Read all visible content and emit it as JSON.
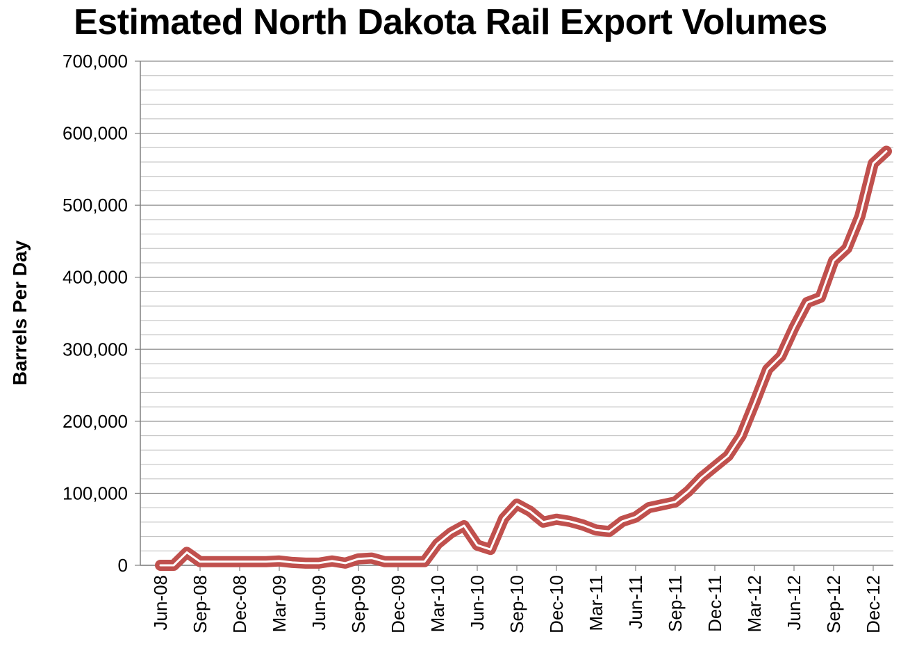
{
  "chart_data": {
    "type": "line",
    "title": "Estimated North Dakota Rail Export Volumes",
    "xlabel": "",
    "ylabel": "Barrels Per Day",
    "ylim": [
      0,
      700000
    ],
    "yticks": [
      "0",
      "100,000",
      "200,000",
      "300,000",
      "400,000",
      "500,000",
      "600,000",
      "700,000"
    ],
    "ytick_values": [
      0,
      100000,
      200000,
      300000,
      400000,
      500000,
      600000,
      700000
    ],
    "xticks": [
      "Jun-08",
      "Sep-08",
      "Dec-08",
      "Mar-09",
      "Jun-09",
      "Sep-09",
      "Dec-09",
      "Mar-10",
      "Jun-10",
      "Sep-10",
      "Dec-10",
      "Mar-11",
      "Jun-11",
      "Sep-11",
      "Dec-11",
      "Mar-12",
      "Jun-12",
      "Sep-12",
      "Dec-12"
    ],
    "grid": {
      "major": true,
      "minor": true,
      "minor_step": 20000
    },
    "legend": "none",
    "line_color": "#C0504D",
    "series": [
      {
        "x": [
          "Jun-08",
          "Jul-08",
          "Aug-08",
          "Sep-08",
          "Oct-08",
          "Nov-08",
          "Dec-08",
          "Jan-09",
          "Feb-09",
          "Mar-09",
          "Apr-09",
          "May-09",
          "Jun-09",
          "Jul-09",
          "Aug-09",
          "Sep-09",
          "Oct-09",
          "Nov-09",
          "Dec-09",
          "Jan-10",
          "Feb-10",
          "Mar-10",
          "Apr-10",
          "May-10",
          "Jun-10",
          "Jul-10",
          "Aug-10",
          "Sep-10",
          "Oct-10",
          "Nov-10",
          "Dec-10",
          "Jan-11",
          "Feb-11",
          "Mar-11",
          "Apr-11",
          "May-11",
          "Jun-11",
          "Jul-11",
          "Aug-11",
          "Sep-11",
          "Oct-11",
          "Nov-11",
          "Dec-11",
          "Jan-12",
          "Feb-12",
          "Mar-12",
          "Apr-12",
          "May-12",
          "Jun-12",
          "Jul-12",
          "Aug-12",
          "Sep-12",
          "Oct-12",
          "Nov-12",
          "Dec-12",
          "Jan-13"
        ],
        "values": [
          0,
          0,
          18000,
          5000,
          5000,
          5000,
          5000,
          5000,
          5000,
          6000,
          4000,
          3000,
          3000,
          6000,
          3000,
          9000,
          10000,
          5000,
          5000,
          5000,
          5000,
          30000,
          45000,
          55000,
          28000,
          22000,
          65000,
          85000,
          75000,
          60000,
          64000,
          61000,
          56000,
          49000,
          47000,
          61000,
          67000,
          80000,
          84000,
          88000,
          103000,
          122000,
          137000,
          152000,
          180000,
          225000,
          272000,
          290000,
          330000,
          365000,
          372000,
          423000,
          440000,
          485000,
          558000,
          575000
        ]
      }
    ]
  }
}
